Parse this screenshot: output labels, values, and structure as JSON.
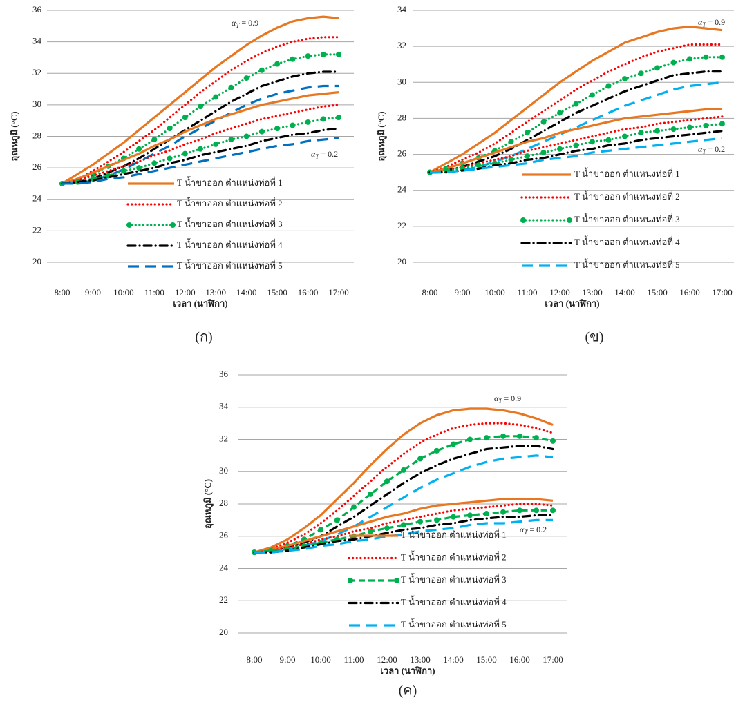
{
  "chart_data": [
    {
      "type": "line",
      "caption": "(ก)",
      "x_label": "เวลา (นาฬิกา)",
      "y_label": "อุณหภูมิ (°C)",
      "categories": [
        "8:00",
        null,
        "9:00",
        null,
        "10:00",
        null,
        "11:00",
        null,
        "12:00",
        null,
        "13:00",
        null,
        "14:00",
        null,
        "15:00",
        null,
        "16:00",
        null,
        "17:00"
      ],
      "ylim": [
        20,
        36
      ],
      "yticks": [
        20,
        22,
        24,
        26,
        28,
        30,
        32,
        34,
        36
      ],
      "grid": true,
      "annotations": [
        {
          "base": "α",
          "sub": "T",
          "rest": " = 0.9"
        },
        {
          "base": "α",
          "sub": "T",
          "rest": " = 0.2"
        }
      ],
      "series": [
        {
          "name": "T น้ำขาออก ตำแหน่งท่อที่ 1",
          "color": "#e87722",
          "style": "solid",
          "values": [
            25,
            25.6,
            26.2,
            26.9,
            27.6,
            28.4,
            29.2,
            30.0,
            30.8,
            31.6,
            32.4,
            33.1,
            33.8,
            34.4,
            34.9,
            35.3,
            35.5,
            35.6,
            35.5
          ]
        },
        {
          "name": "T น้ำขาออก ตำแหน่งท่อที่ 2",
          "color": "#ff0000",
          "style": "dot",
          "values": [
            25,
            25.3,
            25.8,
            26.4,
            27.0,
            27.7,
            28.4,
            29.2,
            30.0,
            30.8,
            31.5,
            32.2,
            32.8,
            33.3,
            33.7,
            34.0,
            34.2,
            34.3,
            34.3
          ]
        },
        {
          "name": "T น้ำขาออก ตำแหน่งท่อที่ 3",
          "color": "#00b050",
          "style": "dot",
          "markers": true,
          "values": [
            25,
            25.2,
            25.6,
            26.1,
            26.6,
            27.2,
            27.8,
            28.5,
            29.2,
            29.9,
            30.5,
            31.1,
            31.7,
            32.2,
            32.6,
            32.9,
            33.1,
            33.2,
            33.2
          ]
        },
        {
          "name": "T น้ำขาออก ตำแหน่งท่อที่ 4",
          "color": "#000000",
          "style": "dash-dot",
          "values": [
            25,
            25.1,
            25.3,
            25.7,
            26.1,
            26.6,
            27.2,
            27.8,
            28.4,
            29.0,
            29.6,
            30.2,
            30.7,
            31.2,
            31.5,
            31.8,
            32.0,
            32.1,
            32.1
          ]
        },
        {
          "name": "T น้ำขาออก ตำแหน่งท่อที่ 5",
          "color": "#0070c0",
          "style": "long-dash",
          "values": [
            25,
            25.0,
            25.2,
            25.5,
            25.9,
            26.4,
            26.9,
            27.4,
            28.0,
            28.5,
            29.0,
            29.5,
            30.0,
            30.4,
            30.7,
            30.9,
            31.1,
            31.2,
            31.2
          ]
        },
        {
          "color": "#e87722",
          "style": "solid",
          "values": [
            25,
            25.3,
            25.7,
            26.1,
            26.5,
            26.9,
            27.4,
            27.8,
            28.3,
            28.7,
            29.1,
            29.4,
            29.7,
            30.0,
            30.2,
            30.4,
            30.6,
            30.7,
            30.8
          ]
        },
        {
          "color": "#ff0000",
          "style": "dot",
          "values": [
            25,
            25.2,
            25.5,
            25.8,
            26.1,
            26.4,
            26.8,
            27.1,
            27.5,
            27.8,
            28.2,
            28.5,
            28.8,
            29.1,
            29.3,
            29.5,
            29.7,
            29.9,
            30.0
          ]
        },
        {
          "color": "#00b050",
          "style": "dot",
          "markers": true,
          "values": [
            25,
            25.1,
            25.3,
            25.5,
            25.8,
            26.0,
            26.3,
            26.6,
            26.9,
            27.2,
            27.5,
            27.8,
            28.0,
            28.3,
            28.5,
            28.7,
            28.9,
            29.1,
            29.2
          ]
        },
        {
          "color": "#000000",
          "style": "dash-dot",
          "values": [
            25,
            25.1,
            25.2,
            25.4,
            25.6,
            25.8,
            26.0,
            26.3,
            26.5,
            26.8,
            27.0,
            27.2,
            27.4,
            27.7,
            27.9,
            28.1,
            28.2,
            28.4,
            28.5
          ]
        },
        {
          "color": "#0070c0",
          "style": "long-dash",
          "values": [
            25,
            25.0,
            25.1,
            25.3,
            25.4,
            25.6,
            25.8,
            26.0,
            26.2,
            26.4,
            26.6,
            26.8,
            27.0,
            27.2,
            27.4,
            27.5,
            27.7,
            27.8,
            27.9
          ]
        }
      ]
    },
    {
      "type": "line",
      "caption": "(ข)",
      "x_label": "เวลา (นาฬิกา)",
      "y_label": "อุณหภูมิ (°C)",
      "categories": [
        "8:00",
        null,
        "9:00",
        null,
        "10:00",
        null,
        "11:00",
        null,
        "12:00",
        null,
        "13:00",
        null,
        "14:00",
        null,
        "15:00",
        null,
        "16:00",
        null,
        "17:00"
      ],
      "ylim": [
        20,
        34
      ],
      "yticks": [
        20,
        22,
        24,
        26,
        28,
        30,
        32,
        34
      ],
      "grid": true,
      "annotations": [
        {
          "base": "α",
          "sub": "T",
          "rest": " = 0.9"
        },
        {
          "base": "α",
          "sub": "T",
          "rest": " = 0.2"
        }
      ],
      "series": [
        {
          "name": "T น้ำขาออก ตำแหน่งท่อที่ 1",
          "color": "#e87722",
          "style": "solid",
          "values": [
            25,
            25.5,
            26.0,
            26.6,
            27.2,
            27.9,
            28.6,
            29.3,
            30.0,
            30.6,
            31.2,
            31.7,
            32.2,
            32.5,
            32.8,
            33.0,
            33.1,
            33.0,
            32.9
          ]
        },
        {
          "name": "T น้ำขาออก ตำแหน่งท่อที่ 2",
          "color": "#ff0000",
          "style": "dot",
          "values": [
            25,
            25.3,
            25.7,
            26.1,
            26.6,
            27.2,
            27.8,
            28.4,
            29.0,
            29.6,
            30.1,
            30.6,
            31.0,
            31.4,
            31.7,
            31.9,
            32.1,
            32.1,
            32.1
          ]
        },
        {
          "name": "T น้ำขาออก ตำแหน่งท่อที่ 3",
          "color": "#00b050",
          "style": "dot",
          "markers": true,
          "values": [
            25,
            25.2,
            25.5,
            25.8,
            26.2,
            26.7,
            27.2,
            27.8,
            28.3,
            28.8,
            29.3,
            29.8,
            30.2,
            30.5,
            30.8,
            31.1,
            31.3,
            31.4,
            31.4
          ]
        },
        {
          "name": "T น้ำขาออก ตำแหน่งท่อที่ 4",
          "color": "#000000",
          "style": "dash-dot",
          "values": [
            25,
            25.1,
            25.3,
            25.6,
            25.9,
            26.3,
            26.8,
            27.3,
            27.8,
            28.3,
            28.7,
            29.1,
            29.5,
            29.8,
            30.1,
            30.4,
            30.5,
            30.6,
            30.6
          ]
        },
        {
          "name": "T น้ำขาออก ตำแหน่งท่อที่ 5",
          "color": "#00b0f0",
          "style": "long-dash",
          "values": [
            25,
            25.0,
            25.1,
            25.3,
            25.6,
            25.9,
            26.3,
            26.7,
            27.1,
            27.5,
            27.9,
            28.3,
            28.7,
            29.0,
            29.3,
            29.6,
            29.8,
            29.9,
            30.0
          ]
        },
        {
          "color": "#e87722",
          "style": "solid",
          "values": [
            25,
            25.2,
            25.5,
            25.8,
            26.1,
            26.4,
            26.7,
            26.9,
            27.2,
            27.4,
            27.6,
            27.8,
            28.0,
            28.1,
            28.2,
            28.3,
            28.4,
            28.5,
            28.5
          ]
        },
        {
          "color": "#ff0000",
          "style": "dot",
          "values": [
            25,
            25.1,
            25.3,
            25.5,
            25.7,
            25.9,
            26.2,
            26.4,
            26.6,
            26.8,
            27.0,
            27.2,
            27.4,
            27.5,
            27.7,
            27.8,
            27.9,
            28.0,
            28.1
          ]
        },
        {
          "color": "#00b050",
          "style": "dot",
          "markers": true,
          "values": [
            25,
            25.1,
            25.2,
            25.4,
            25.5,
            25.7,
            25.9,
            26.1,
            26.3,
            26.5,
            26.7,
            26.8,
            27.0,
            27.2,
            27.3,
            27.4,
            27.5,
            27.6,
            27.7
          ]
        },
        {
          "color": "#000000",
          "style": "dash-dot",
          "values": [
            25,
            25.0,
            25.1,
            25.2,
            25.4,
            25.5,
            25.7,
            25.8,
            26.0,
            26.2,
            26.3,
            26.5,
            26.6,
            26.8,
            26.9,
            27.0,
            27.1,
            27.2,
            27.3
          ]
        },
        {
          "color": "#00b0f0",
          "style": "long-dash",
          "values": [
            25,
            25.0,
            25.1,
            25.2,
            25.3,
            25.4,
            25.5,
            25.7,
            25.8,
            25.9,
            26.1,
            26.2,
            26.3,
            26.4,
            26.5,
            26.6,
            26.7,
            26.8,
            26.9
          ]
        }
      ]
    },
    {
      "type": "line",
      "caption": "(ค)",
      "x_label": "เวลา (นาฬิกา)",
      "y_label": "อุณหภูมิ (°C)",
      "categories": [
        "8:00",
        null,
        "9:00",
        null,
        "10:00",
        null,
        "11:00",
        null,
        "12:00",
        null,
        "13:00",
        null,
        "14:00",
        null,
        "15:00",
        null,
        "16:00",
        null,
        "17:00"
      ],
      "ylim": [
        20,
        36
      ],
      "yticks": [
        20,
        22,
        24,
        26,
        28,
        30,
        32,
        34,
        36
      ],
      "grid": true,
      "annotations": [
        {
          "base": "α",
          "sub": "T",
          "rest": " = 0.9"
        },
        {
          "base": "α",
          "sub": "T",
          "rest": " = 0.2"
        }
      ],
      "series": [
        {
          "name": "T น้ำขาออก ตำแหน่งท่อที่ 1",
          "color": "#e87722",
          "style": "solid",
          "values": [
            25,
            25.3,
            25.8,
            26.5,
            27.3,
            28.3,
            29.3,
            30.4,
            31.4,
            32.3,
            33.0,
            33.5,
            33.8,
            33.9,
            33.9,
            33.8,
            33.6,
            33.3,
            32.9
          ]
        },
        {
          "name": "T น้ำขาออก ตำแหน่งท่อที่ 2",
          "color": "#ff0000",
          "style": "dot",
          "values": [
            25,
            25.2,
            25.6,
            26.1,
            26.8,
            27.6,
            28.5,
            29.4,
            30.3,
            31.1,
            31.8,
            32.3,
            32.7,
            32.9,
            33.0,
            33.0,
            32.9,
            32.7,
            32.4
          ]
        },
        {
          "name": "T น้ำขาออก ตำแหน่งท่อที่ 3",
          "color": "#00b050",
          "style": "dash",
          "markers": true,
          "values": [
            25,
            25.1,
            25.4,
            25.8,
            26.4,
            27.0,
            27.8,
            28.6,
            29.4,
            30.1,
            30.8,
            31.3,
            31.7,
            32.0,
            32.1,
            32.2,
            32.2,
            32.1,
            31.9
          ]
        },
        {
          "name": "T น้ำขาออก ตำแหน่งท่อที่ 4",
          "color": "#000000",
          "style": "dash-dot",
          "values": [
            25,
            25.1,
            25.3,
            25.6,
            26.0,
            26.6,
            27.2,
            27.9,
            28.6,
            29.3,
            29.9,
            30.4,
            30.8,
            31.1,
            31.4,
            31.5,
            31.6,
            31.6,
            31.4
          ]
        },
        {
          "name": "T น้ำขาออก ตำแหน่งท่อที่ 5",
          "color": "#00b0f0",
          "style": "long-dash",
          "values": [
            25,
            25.0,
            25.2,
            25.4,
            25.7,
            26.1,
            26.6,
            27.2,
            27.8,
            28.4,
            29.0,
            29.5,
            29.9,
            30.3,
            30.6,
            30.8,
            30.9,
            31.0,
            30.9
          ]
        },
        {
          "color": "#e87722",
          "style": "solid",
          "values": [
            25,
            25.2,
            25.4,
            25.7,
            26.0,
            26.3,
            26.6,
            26.9,
            27.2,
            27.4,
            27.7,
            27.9,
            28.0,
            28.1,
            28.2,
            28.3,
            28.3,
            28.3,
            28.2
          ]
        },
        {
          "color": "#ff0000",
          "style": "dot",
          "values": [
            25,
            25.1,
            25.3,
            25.5,
            25.8,
            26.0,
            26.3,
            26.5,
            26.8,
            27.0,
            27.2,
            27.4,
            27.6,
            27.7,
            27.8,
            27.9,
            28.0,
            28.0,
            27.9
          ]
        },
        {
          "color": "#00b050",
          "style": "dash",
          "markers": true,
          "values": [
            25,
            25.1,
            25.2,
            25.4,
            25.6,
            25.8,
            26.0,
            26.3,
            26.5,
            26.7,
            26.9,
            27.0,
            27.2,
            27.3,
            27.4,
            27.5,
            27.6,
            27.6,
            27.6
          ]
        },
        {
          "color": "#000000",
          "style": "dash-dot",
          "values": [
            25,
            25.0,
            25.1,
            25.3,
            25.5,
            25.7,
            25.8,
            26.0,
            26.2,
            26.4,
            26.5,
            26.7,
            26.8,
            27.0,
            27.1,
            27.2,
            27.2,
            27.3,
            27.3
          ]
        },
        {
          "color": "#00b0f0",
          "style": "long-dash",
          "values": [
            25,
            25.0,
            25.1,
            25.2,
            25.4,
            25.5,
            25.7,
            25.8,
            26.0,
            26.1,
            26.3,
            26.4,
            26.5,
            26.7,
            26.8,
            26.8,
            26.9,
            27.0,
            27.0
          ]
        }
      ]
    }
  ]
}
